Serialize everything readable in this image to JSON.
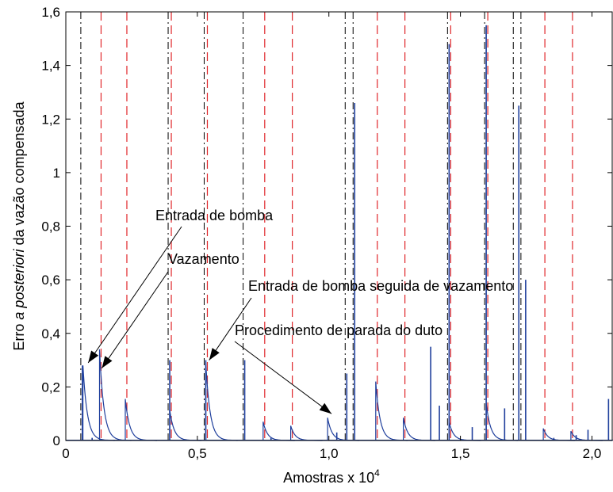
{
  "chart_data": {
    "type": "line",
    "xlabel": "Amostras x 10",
    "xlabel_exponent": "4",
    "ylabel_parts": [
      "Erro ",
      "a posteriori",
      " da vazão compensada"
    ],
    "xlim": [
      0,
      2.08
    ],
    "ylim": [
      0,
      1.6
    ],
    "x_ticks": [
      0,
      0.5,
      1.0,
      1.5,
      2.0
    ],
    "x_tick_labels": [
      "0",
      "0,5",
      "1,0",
      "1,5",
      "2,0"
    ],
    "y_ticks": [
      0,
      0.2,
      0.4,
      0.6,
      0.8,
      1.0,
      1.2,
      1.4,
      1.6
    ],
    "y_tick_labels": [
      "0",
      "0,2",
      "0,4",
      "0,6",
      "0,8",
      "1",
      "1,2",
      "1,4",
      "1,6"
    ],
    "grid": false,
    "colors": {
      "error_line": "#1f3f9c",
      "pump_marker": "#000000",
      "leak_marker": "#e0262a"
    },
    "error_events": [
      {
        "x": 0.065,
        "peak": 0.28
      },
      {
        "x": 0.128,
        "peak": 0.34
      },
      {
        "x": 0.226,
        "peak": 0.155
      },
      {
        "x": 0.395,
        "peak": 0.115
      },
      {
        "x": 0.532,
        "peak": 0.29
      },
      {
        "x": 0.75,
        "peak": 0.07
      },
      {
        "x": 0.855,
        "peak": 0.055
      },
      {
        "x": 0.995,
        "peak": 0.085
      },
      {
        "x": 1.178,
        "peak": 0.22
      },
      {
        "x": 1.283,
        "peak": 0.085
      },
      {
        "x": 1.457,
        "peak": 0.07
      },
      {
        "x": 1.598,
        "peak": 0.14
      },
      {
        "x": 1.815,
        "peak": 0.045
      },
      {
        "x": 1.92,
        "peak": 0.035
      }
    ],
    "spikes": [
      {
        "x": 0.063,
        "y": 0.28
      },
      {
        "x": 0.395,
        "y": 0.3
      },
      {
        "x": 0.532,
        "y": 0.3
      },
      {
        "x": 0.68,
        "y": 0.3
      },
      {
        "x": 1.068,
        "y": 0.25
      },
      {
        "x": 1.098,
        "y": 1.26
      },
      {
        "x": 1.387,
        "y": 0.35
      },
      {
        "x": 1.42,
        "y": 0.13
      },
      {
        "x": 1.457,
        "y": 1.48
      },
      {
        "x": 1.598,
        "y": 1.55
      },
      {
        "x": 1.668,
        "y": 0.12
      },
      {
        "x": 1.722,
        "y": 1.25
      },
      {
        "x": 1.748,
        "y": 0.6
      },
      {
        "x": 1.985,
        "y": 0.04
      },
      {
        "x": 2.063,
        "y": 0.155
      },
      {
        "x": 0.78,
        "y": 0.01
      },
      {
        "x": 1.545,
        "y": 0.05
      },
      {
        "x": 1.855,
        "y": 0.01
      },
      {
        "x": 1.94,
        "y": 0.02
      },
      {
        "x": 1.03,
        "y": 0.03
      },
      {
        "x": 0.1,
        "y": 0.01
      }
    ],
    "pump_entry_markers": [
      0.063,
      0.395,
      0.532,
      0.68,
      1.068,
      1.098,
      1.457,
      1.598,
      1.707,
      1.736
    ],
    "leak_markers": [
      0.128,
      0.226,
      0.395,
      0.532,
      0.75,
      0.855,
      1.178,
      1.283,
      1.457,
      1.598,
      1.815,
      1.92
    ],
    "annotations": [
      {
        "text": "Entrada de bomba",
        "target": [
          0.085,
          0.29
        ]
      },
      {
        "text": "Vazamento",
        "target": [
          0.137,
          0.27
        ]
      },
      {
        "text": "Entrada de bomba seguida de vazamento",
        "target": [
          0.545,
          0.3
        ]
      },
      {
        "text": "Procedimento de parada do duto",
        "target": [
          1.01,
          0.1
        ]
      }
    ]
  }
}
